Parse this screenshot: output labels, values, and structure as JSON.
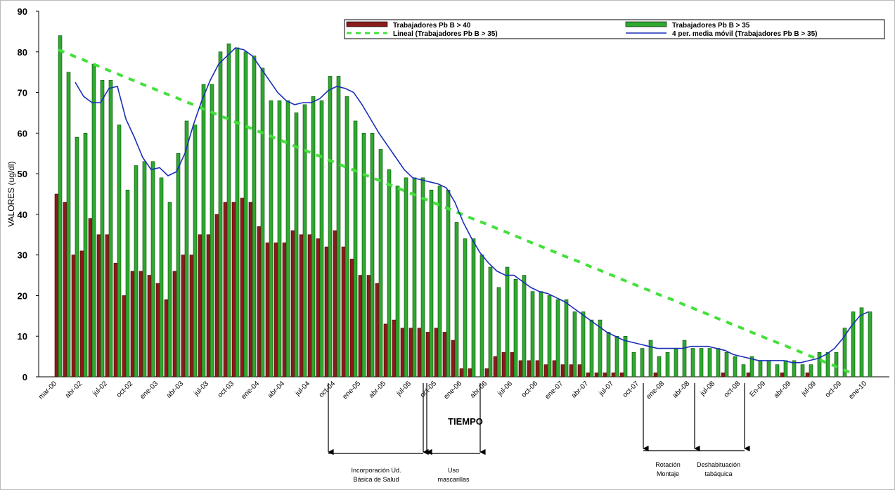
{
  "chart_data": {
    "type": "bar",
    "x_label": "TIEMPO",
    "y_label": "VALORES (ug/dl)",
    "ylim": [
      0,
      90
    ],
    "yticks": [
      0,
      10,
      20,
      30,
      40,
      50,
      60,
      70,
      80,
      90
    ],
    "grid": false,
    "legend": "top-right",
    "categories": [
      "mar-00",
      null,
      null,
      "abr-02",
      null,
      null,
      "jul-02",
      null,
      null,
      "oct-02",
      null,
      null,
      "ene-03",
      null,
      null,
      "abr-03",
      null,
      null,
      "jul-03",
      null,
      null,
      "oct-03",
      null,
      null,
      "ene-04",
      null,
      null,
      "abr-04",
      null,
      null,
      "jul-04",
      null,
      null,
      "oct-04",
      null,
      null,
      "ene-05",
      null,
      null,
      "abr-05",
      null,
      null,
      "jul-05",
      null,
      null,
      "oct-05",
      null,
      null,
      "ene-06",
      null,
      null,
      "abr-06",
      null,
      null,
      "jul-06",
      null,
      null,
      "oct-06",
      null,
      null,
      "ene-07",
      null,
      null,
      "abr-07",
      null,
      null,
      "jul-07",
      null,
      null,
      "oct-07",
      null,
      null,
      "ene-08",
      null,
      null,
      "abr-08",
      null,
      null,
      "jul-08",
      null,
      null,
      "oct-08",
      null,
      null,
      "En-09",
      null,
      null,
      "abr-09",
      null,
      null,
      "jul-09",
      null,
      null,
      "oct-09",
      null,
      null,
      "ene-10"
    ],
    "series": [
      {
        "name": "Trabajadores Pb B > 40",
        "type": "bar",
        "color": "#8b1a1a",
        "values": [
          45,
          43,
          30,
          31,
          39,
          35,
          35,
          28,
          20,
          26,
          26,
          25,
          23,
          19,
          26,
          30,
          30,
          35,
          35,
          40,
          43,
          43,
          44,
          43,
          37,
          33,
          33,
          33,
          36,
          35,
          35,
          34,
          32,
          36,
          32,
          29,
          25,
          25,
          23,
          13,
          14,
          12,
          12,
          12,
          11,
          12,
          11,
          9,
          2,
          2,
          0,
          2,
          5,
          6,
          6,
          4,
          4,
          4,
          3,
          4,
          3,
          3,
          3,
          1,
          1,
          1,
          1,
          1,
          0,
          0,
          0,
          1,
          0,
          0,
          0,
          0,
          0,
          0,
          0,
          1,
          0,
          0,
          1,
          0,
          0,
          0,
          1,
          0,
          0,
          1,
          0,
          0,
          0,
          0,
          0,
          0,
          0
        ]
      },
      {
        "name": "Trabajadores Pb B > 35",
        "type": "bar",
        "color": "#2fa82f",
        "values": [
          84,
          75,
          59,
          60,
          77,
          73,
          73,
          62,
          46,
          52,
          53,
          53,
          49,
          43,
          55,
          63,
          62,
          72,
          72,
          80,
          82,
          81,
          80,
          79,
          76,
          68,
          68,
          68,
          65,
          67,
          69,
          68,
          74,
          74,
          69,
          63,
          60,
          60,
          56,
          51,
          47,
          49,
          49,
          49,
          46,
          47,
          46,
          38,
          34,
          34,
          30,
          27,
          22,
          27,
          24,
          25,
          21,
          21,
          20,
          19,
          19,
          16,
          16,
          14,
          14,
          11,
          10,
          10,
          6,
          7,
          9,
          5,
          6,
          7,
          9,
          7,
          7,
          7,
          7,
          6,
          5,
          3,
          5,
          4,
          4,
          3,
          4,
          4,
          3,
          3,
          6,
          6,
          6,
          12,
          16,
          17,
          16
        ]
      },
      {
        "name": "Lineal (Trabajadores Pb B > 35)",
        "type": "line",
        "line_style": "dashed",
        "color": "#44e03c",
        "values": [
          80.5,
          79.7,
          78.8,
          78.0,
          77.1,
          76.3,
          75.4,
          74.6,
          73.7,
          72.9,
          72.0,
          71.2,
          70.3,
          69.5,
          68.7,
          67.8,
          67.0,
          66.1,
          65.3,
          64.4,
          63.6,
          62.7,
          61.9,
          61.0,
          60.2,
          59.4,
          58.5,
          57.7,
          56.8,
          56.0,
          55.1,
          54.3,
          53.4,
          52.6,
          51.7,
          50.9,
          50.0,
          49.2,
          48.4,
          47.5,
          46.7,
          45.8,
          45.0,
          44.1,
          43.3,
          42.4,
          41.6,
          40.7,
          39.9,
          39.0,
          38.2,
          37.4,
          36.5,
          35.7,
          34.8,
          34.0,
          33.1,
          32.3,
          31.4,
          30.6,
          29.7,
          28.9,
          28.1,
          27.2,
          26.4,
          25.5,
          24.7,
          23.8,
          23.0,
          22.1,
          21.3,
          20.4,
          19.6,
          18.8,
          17.9,
          17.1,
          16.2,
          15.4,
          14.5,
          13.7,
          12.8,
          12.0,
          11.1,
          10.3,
          9.4,
          8.6,
          7.8,
          6.9,
          6.1,
          5.2,
          4.4,
          3.5,
          2.7,
          1.8,
          1.0,
          null,
          null
        ]
      },
      {
        "name": "4 per. media móvil (Trabajadores Pb B > 35)",
        "type": "line",
        "line_style": "solid",
        "color": "#1a2fb8",
        "values": [
          null,
          null,
          72.5,
          69,
          67.5,
          67.5,
          71,
          71.5,
          63.5,
          59,
          54,
          51,
          51.5,
          49.5,
          50.5,
          55,
          62,
          68,
          73,
          77,
          79,
          81,
          80.5,
          79,
          76,
          73,
          70,
          68,
          67,
          67.5,
          67.5,
          68.5,
          70.5,
          71.5,
          71,
          70,
          67,
          63.5,
          60,
          57,
          54,
          51,
          49,
          48.5,
          48,
          47.5,
          46.5,
          43,
          38,
          34,
          30.5,
          28,
          26,
          25,
          25,
          23.5,
          22,
          21,
          20.5,
          19.5,
          18.5,
          17,
          15.5,
          14,
          12.5,
          11,
          10,
          9,
          8.5,
          8,
          7.5,
          7,
          7,
          7,
          7,
          7.5,
          7.5,
          7.5,
          7,
          6.5,
          5.5,
          5,
          4.5,
          4,
          4,
          4,
          4,
          3.5,
          3.5,
          4,
          4.5,
          5.5,
          7,
          9.5,
          12.5,
          15,
          16
        ]
      }
    ],
    "annotations": [
      {
        "lines": [
          "Incorporación Ud.",
          "Básica de Salud"
        ]
      },
      {
        "lines": [
          "Uso",
          "mascarillas"
        ]
      },
      {
        "lines": [
          "Rotación",
          "Montaje"
        ]
      },
      {
        "lines": [
          "Deshabituación",
          "tabáquica"
        ]
      }
    ]
  }
}
